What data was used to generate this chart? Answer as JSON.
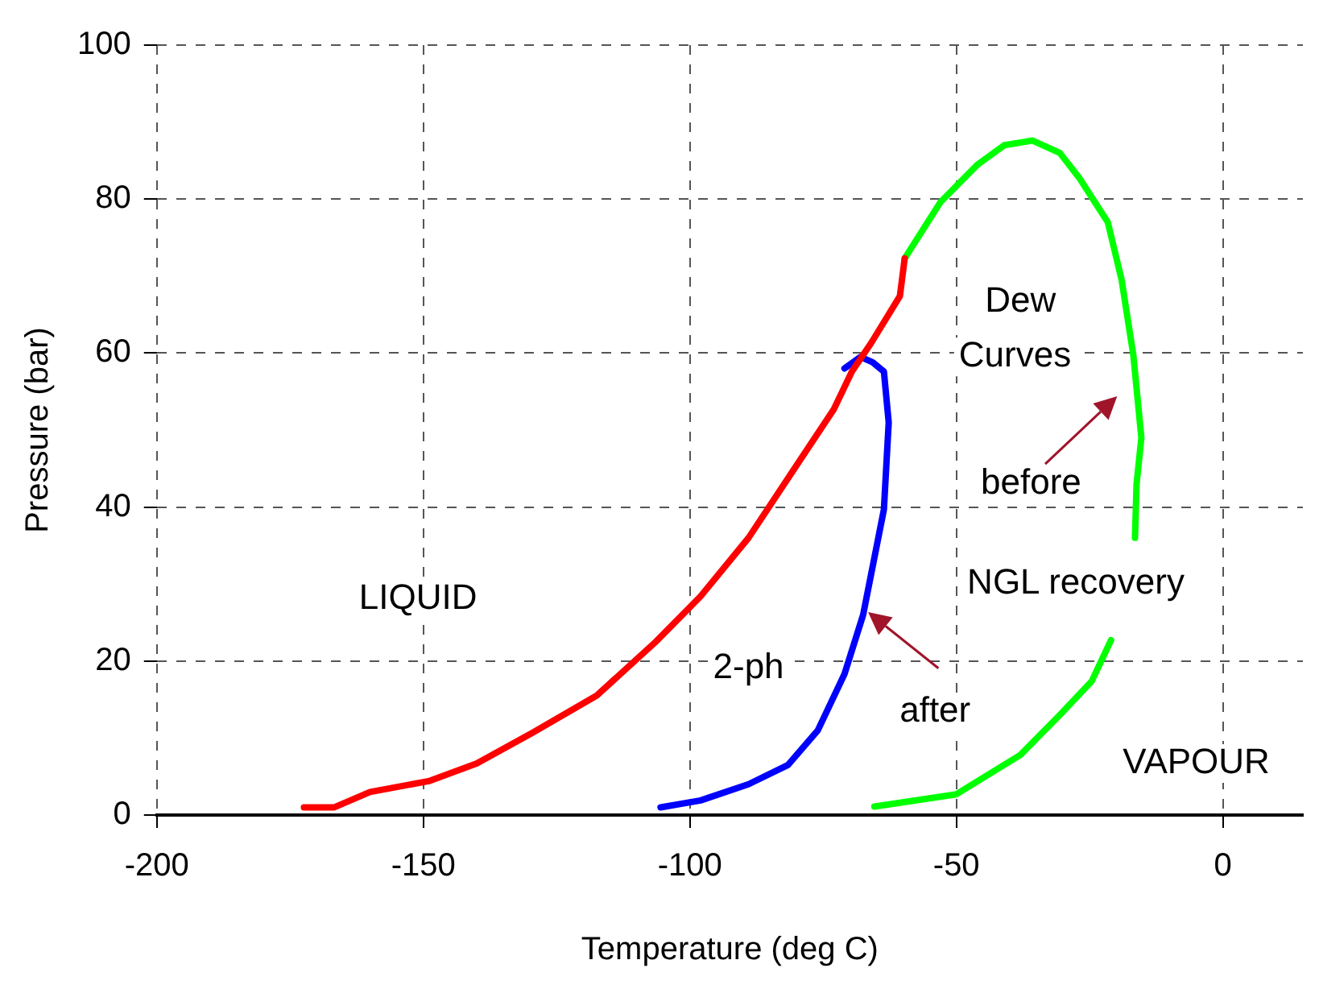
{
  "chart_data": {
    "type": "line",
    "xlabel": "Temperature (deg C)",
    "ylabel": "Pressure (bar)",
    "xlim": [
      -200,
      15
    ],
    "xticks": [
      -200,
      -150,
      -100,
      -50,
      0
    ],
    "ylim": [
      0,
      100
    ],
    "yticks": [
      0,
      20,
      40,
      60,
      80,
      100
    ],
    "grid": true,
    "legend": false,
    "marker": "none",
    "line_style": "solid",
    "series": [
      {
        "color": "#ff0000",
        "x": [
          -172.4,
          -166.7,
          -160,
          -149,
          -140,
          -129.5,
          -117.5,
          -106.4,
          -98,
          -89,
          -80,
          -73,
          -69.6,
          -66,
          -60.6,
          -59.7
        ],
        "values": [
          1,
          1,
          3,
          4.4,
          6.7,
          10.7,
          15.5,
          22.5,
          28.4,
          36,
          45.4,
          52.7,
          57.6,
          61.3,
          67.4,
          72.3
        ]
      },
      {
        "color": "#00ff00",
        "x": [
          -59.7,
          -53,
          -46,
          -41,
          -35.7,
          -30.6,
          -27,
          -21.6,
          -19,
          -16.8,
          -15.3,
          -16.2,
          -16.5,
          -19,
          -21,
          -24.6,
          -30.6,
          -38,
          -50,
          -65.4
        ],
        "values": [
          72.3,
          79.6,
          84.5,
          87,
          87.6,
          86,
          82.8,
          77,
          69.5,
          59.7,
          49,
          43,
          36,
          null,
          22.7,
          17.4,
          13,
          7.8,
          2.7,
          1.1
        ]
      },
      {
        "color": "#0000ff",
        "x": [
          -105.5,
          -98,
          -89,
          -81.6,
          -76,
          -71,
          -67.5,
          -63.6,
          -62.7,
          -63.6,
          -65.7,
          -68,
          -71
        ],
        "values": [
          1,
          1.9,
          4,
          6.5,
          11,
          18.3,
          26,
          39.7,
          51,
          57.6,
          58.8,
          59.5,
          58
        ]
      }
    ],
    "annotations": [
      "LIQUID",
      "2-ph",
      "Dew",
      "Curves",
      "before",
      "NGL recovery",
      "after",
      "VAPOUR"
    ]
  }
}
